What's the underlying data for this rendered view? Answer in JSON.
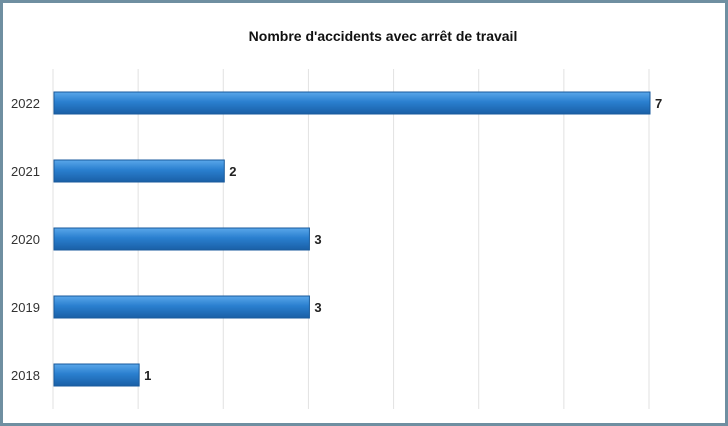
{
  "chart_data": {
    "type": "bar",
    "orientation": "horizontal",
    "title": "Nombre d'accidents avec arrêt de travail",
    "categories": [
      "2022",
      "2021",
      "2020",
      "2019",
      "2018"
    ],
    "values": [
      7,
      2,
      3,
      3,
      1
    ],
    "data_labels": [
      "7",
      "2",
      "3",
      "3",
      "1"
    ],
    "xlim": [
      0,
      7
    ],
    "x_gridline_step": 1,
    "grid": true,
    "legend": "none",
    "bar_color": "#2a7fcf"
  }
}
